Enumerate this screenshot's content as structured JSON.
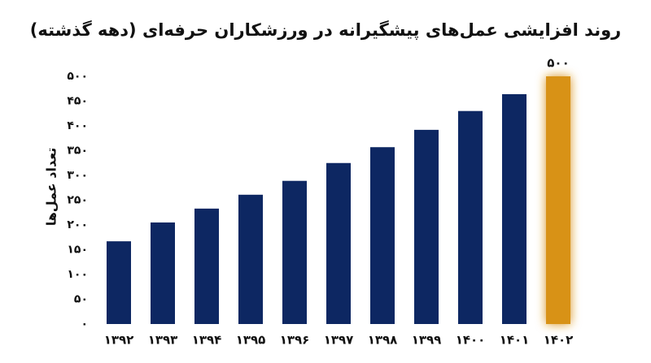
{
  "chart_data": {
    "type": "bar",
    "title": "روند افزایشی عمل‌های پیشگیرانه در ورزشکاران حرفه‌ای (دهه گذشته)",
    "y_label": "تعداد عمل‌ها",
    "categories": [
      "۱۳۹۲",
      "۱۳۹۳",
      "۱۳۹۴",
      "۱۳۹۵",
      "۱۳۹۶",
      "۱۳۹۷",
      "۱۳۹۸",
      "۱۳۹۹",
      "۱۴۰۰",
      "۱۴۰۱",
      "۱۴۰۲"
    ],
    "values": [
      167,
      205,
      233,
      261,
      289,
      325,
      357,
      392,
      430,
      464,
      500
    ],
    "value_labels": [
      null,
      null,
      null,
      null,
      null,
      null,
      null,
      null,
      null,
      null,
      "۵۰۰"
    ],
    "colors": [
      "#0d2762",
      "#0d2762",
      "#0d2762",
      "#0d2762",
      "#0d2762",
      "#0d2762",
      "#0d2762",
      "#0d2762",
      "#0d2762",
      "#0d2762",
      "#d89212"
    ],
    "ylim": [
      0,
      500
    ],
    "yticks": [
      {
        "value": 0,
        "label": "۰"
      },
      {
        "value": 50,
        "label": "۵۰"
      },
      {
        "value": 100,
        "label": "۱۰۰"
      },
      {
        "value": 150,
        "label": "۱۵۰"
      },
      {
        "value": 200,
        "label": "۲۰۰"
      },
      {
        "value": 250,
        "label": "۲۵۰"
      },
      {
        "value": 300,
        "label": "۳۰۰"
      },
      {
        "value": 350,
        "label": "۳۵۰"
      },
      {
        "value": 400,
        "label": "۴۰۰"
      },
      {
        "value": 450,
        "label": "۴۵۰"
      },
      {
        "value": 500,
        "label": "۵۰۰"
      }
    ],
    "grid": false
  }
}
